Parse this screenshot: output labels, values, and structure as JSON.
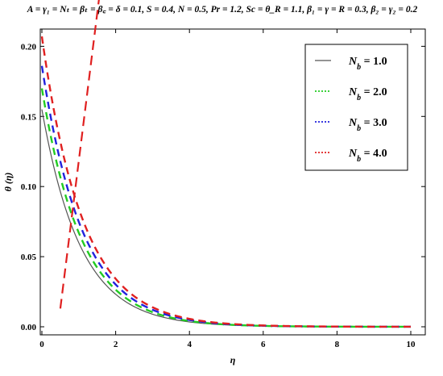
{
  "caption": "A = γ₁ = Nₜ = βₜ = β꜀ = δ = 0.1, S = 0.4, N = 0.5, Pr = 1.2, Sc = θ_R = 1.1, β₁ = γ = R = 0.3, β₂ = γ₂ = 0.2",
  "colors": {
    "axis": "#000000",
    "arrow": "#e02020"
  },
  "chart_data": {
    "type": "line",
    "xlabel": "η",
    "ylabel": "θ (η)",
    "xlim": [
      0,
      10
    ],
    "ylim": [
      0,
      0.21
    ],
    "xticks": [
      0,
      2,
      4,
      6,
      8,
      10
    ],
    "yticks": [
      0.0,
      0.05,
      0.1,
      0.15,
      0.2
    ],
    "ytick_labels": [
      "0.00",
      "0.05",
      "0.10",
      "0.15",
      "0.20"
    ],
    "grid": false,
    "legend_position": "top-right",
    "annotation": "arrow indicating increasing N_b",
    "series": [
      {
        "name": "N_b = 1.0",
        "label_main": "N",
        "label_sub": "b",
        "label_val": " = 1.0",
        "color": "#555555",
        "dash": "solid",
        "y0": 0.155,
        "k": 0.95
      },
      {
        "name": "N_b = 2.0",
        "label_main": "N",
        "label_sub": "b",
        "label_val": " = 2.0",
        "color": "#22cc22",
        "dash": "dashed",
        "y0": 0.17,
        "k": 0.93
      },
      {
        "name": "N_b = 3.0",
        "label_main": "N",
        "label_sub": "b",
        "label_val": " = 3.0",
        "color": "#2222dd",
        "dash": "dashed",
        "y0": 0.186,
        "k": 0.91
      },
      {
        "name": "N_b = 4.0",
        "label_main": "N",
        "label_sub": "b",
        "label_val": " = 4.0",
        "color": "#e02020",
        "dash": "dashed",
        "y0": 0.207,
        "k": 0.9
      }
    ],
    "arrow": {
      "from": [
        0.5,
        0.013
      ],
      "to": [
        2.5,
        0.434
      ]
    }
  }
}
